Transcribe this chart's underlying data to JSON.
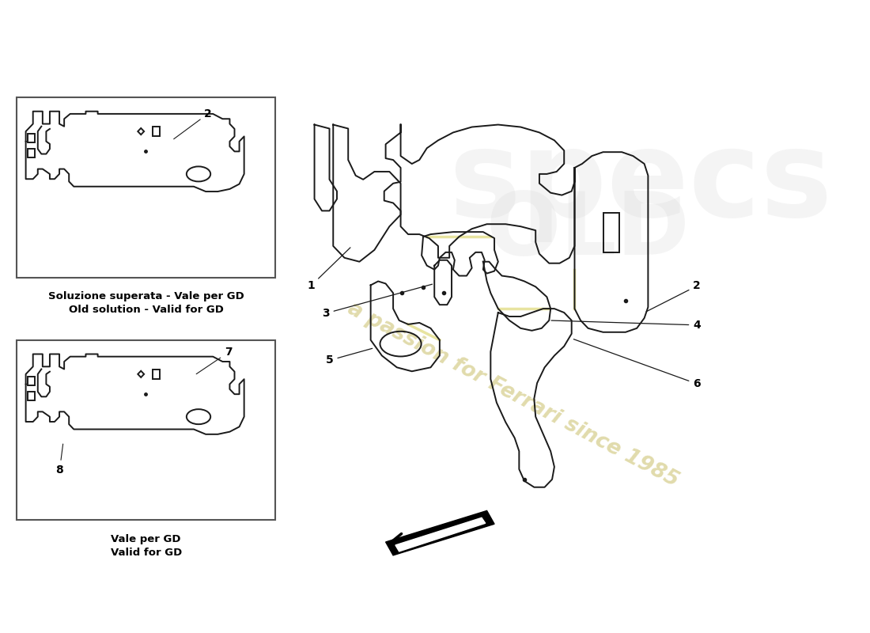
{
  "background_color": "#ffffff",
  "line_color": "#1a1a1a",
  "watermark_text": "a passion for Ferrari since 1985",
  "watermark_color": "#d4cc88",
  "box1_label1": "Soluzione superata - Vale per GD",
  "box1_label2": "Old solution - Valid for GD",
  "box2_label1": "Vale per GD",
  "box2_label2": "Valid for GD",
  "box_edge_color": "#555555",
  "highlight_color": "#e8e4a0",
  "arrow_color": "#000000"
}
